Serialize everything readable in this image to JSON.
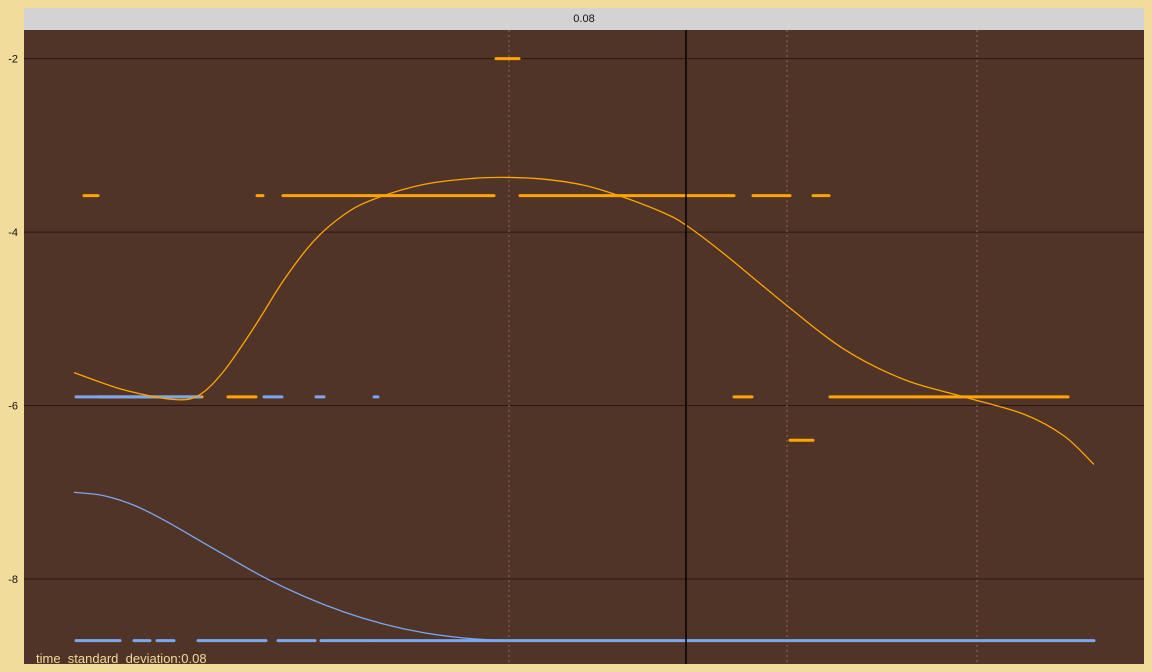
{
  "header": {
    "title": "0.08"
  },
  "footer": {
    "label": "time_standard_deviation:0.08"
  },
  "colors": {
    "background": "#f2dc9b",
    "plot_bg": "#513428",
    "header_bg": "#d3d3d3",
    "grid": "#2b1710",
    "series_orange": "#ffa500",
    "series_blue": "#7ba7f0",
    "cursor": "#000000"
  },
  "chart_data": {
    "type": "line",
    "title": "0.08",
    "xlabel": "",
    "ylabel": "",
    "xlim": [
      0,
      1120
    ],
    "ylim": [
      -8.98,
      -1.67
    ],
    "yticks": [
      -2,
      -4,
      -6,
      -8
    ],
    "ytick_labels": [
      "-2",
      "-4",
      "-6",
      "-8"
    ],
    "grid": true,
    "vertical_dotted_x": [
      485,
      763,
      953
    ],
    "cursor_x": 662,
    "series": [
      {
        "color": "#ffa500",
        "curve": [
          [
            50,
            -5.62
          ],
          [
            100,
            -5.82
          ],
          [
            150,
            -5.93
          ],
          [
            175,
            -5.88
          ],
          [
            200,
            -5.6
          ],
          [
            230,
            -5.1
          ],
          [
            260,
            -4.55
          ],
          [
            290,
            -4.1
          ],
          [
            320,
            -3.8
          ],
          [
            350,
            -3.62
          ],
          [
            400,
            -3.45
          ],
          [
            450,
            -3.38
          ],
          [
            485,
            -3.37
          ],
          [
            520,
            -3.39
          ],
          [
            560,
            -3.46
          ],
          [
            600,
            -3.6
          ],
          [
            640,
            -3.78
          ],
          [
            662,
            -3.92
          ],
          [
            700,
            -4.25
          ],
          [
            760,
            -4.82
          ],
          [
            820,
            -5.35
          ],
          [
            880,
            -5.7
          ],
          [
            940,
            -5.9
          ],
          [
            1000,
            -6.1
          ],
          [
            1040,
            -6.35
          ],
          [
            1070,
            -6.68
          ]
        ],
        "segments": [
          {
            "y": -2.0,
            "x": [
              [
                472,
                495
              ]
            ]
          },
          {
            "y": -3.58,
            "x": [
              [
                60,
                74
              ],
              [
                233,
                239
              ],
              [
                259,
                470
              ],
              [
                496,
                710
              ],
              [
                729,
                766
              ],
              [
                789,
                805
              ]
            ]
          },
          {
            "y": -5.9,
            "x": [
              [
                75,
                178
              ],
              [
                204,
                232
              ],
              [
                710,
                728
              ],
              [
                806,
                1044
              ]
            ]
          },
          {
            "y": -6.4,
            "x": [
              [
                766,
                789
              ]
            ]
          }
        ]
      },
      {
        "color": "#7ba7f0",
        "curve": [
          [
            50,
            -7.0
          ],
          [
            80,
            -7.04
          ],
          [
            110,
            -7.15
          ],
          [
            140,
            -7.32
          ],
          [
            170,
            -7.52
          ],
          [
            200,
            -7.72
          ],
          [
            240,
            -7.98
          ],
          [
            280,
            -8.2
          ],
          [
            320,
            -8.38
          ],
          [
            360,
            -8.52
          ],
          [
            400,
            -8.62
          ],
          [
            440,
            -8.68
          ],
          [
            485,
            -8.71
          ],
          [
            520,
            -8.71
          ],
          [
            1070,
            -8.71
          ]
        ],
        "segments": [
          {
            "y": -5.9,
            "x": [
              [
                52,
                97
              ],
              [
                100,
                176
              ],
              [
                240,
                258
              ],
              [
                292,
                300
              ],
              [
                350,
                354
              ]
            ]
          },
          {
            "y": -8.71,
            "x": [
              [
                52,
                96
              ],
              [
                110,
                126
              ],
              [
                133,
                150
              ],
              [
                174,
                242
              ],
              [
                254,
                291
              ],
              [
                297,
                351
              ],
              [
                352,
                1070
              ]
            ]
          }
        ]
      }
    ]
  }
}
